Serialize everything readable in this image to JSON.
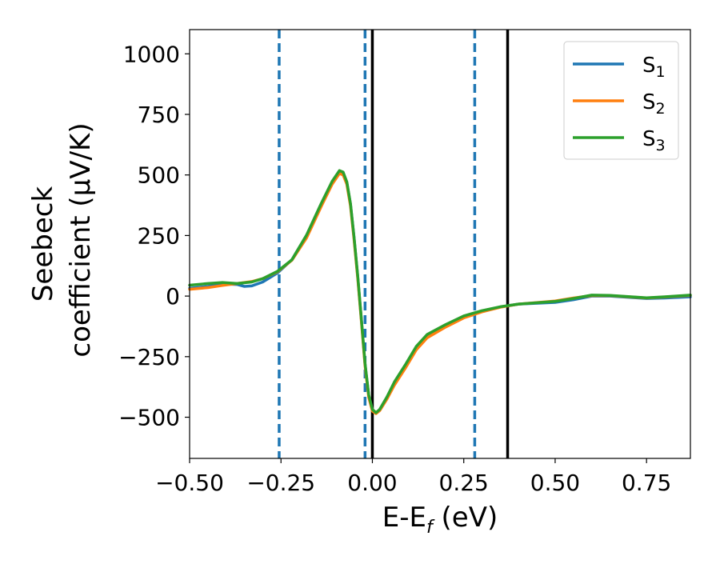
{
  "chart_data": {
    "type": "line",
    "title": "",
    "xlabel": "E-E",
    "xlabel_sub": "f",
    "xlabel_unit": " (eV)",
    "ylabel_line1": "Seebeck",
    "ylabel_line2": "coefficient  (μV/K)",
    "xlim": [
      -0.5,
      0.87
    ],
    "ylim": [
      -670,
      1100
    ],
    "xticks": [
      {
        "value": -0.5,
        "label": "−0.50"
      },
      {
        "value": -0.25,
        "label": "−0.25"
      },
      {
        "value": 0.0,
        "label": "0.00"
      },
      {
        "value": 0.25,
        "label": "0.25"
      },
      {
        "value": 0.5,
        "label": "0.50"
      },
      {
        "value": 0.75,
        "label": "0.75"
      }
    ],
    "yticks": [
      {
        "value": -500,
        "label": "−500"
      },
      {
        "value": -250,
        "label": "−250"
      },
      {
        "value": 0,
        "label": "0"
      },
      {
        "value": 250,
        "label": "250"
      },
      {
        "value": 500,
        "label": "500"
      },
      {
        "value": 750,
        "label": "750"
      },
      {
        "value": 1000,
        "label": "1000"
      }
    ],
    "grid": false,
    "legend_position": "top-right",
    "vlines": [
      {
        "x": -0.255,
        "style": "dashed",
        "color": "#1f77b4"
      },
      {
        "x": -0.02,
        "style": "dashed",
        "color": "#1f77b4"
      },
      {
        "x": 0.28,
        "style": "dashed",
        "color": "#1f77b4"
      },
      {
        "x": 0.0,
        "style": "solid",
        "color": "#000000"
      },
      {
        "x": 0.37,
        "style": "solid",
        "color": "#000000"
      }
    ],
    "series": [
      {
        "name": "S",
        "sub": "1",
        "color": "#1f77b4",
        "points": [
          [
            -0.5,
            32
          ],
          [
            -0.45,
            40
          ],
          [
            -0.41,
            50
          ],
          [
            -0.37,
            48
          ],
          [
            -0.35,
            40
          ],
          [
            -0.33,
            42
          ],
          [
            -0.3,
            58
          ],
          [
            -0.26,
            95
          ],
          [
            -0.22,
            150
          ],
          [
            -0.18,
            250
          ],
          [
            -0.14,
            380
          ],
          [
            -0.11,
            470
          ],
          [
            -0.09,
            515
          ],
          [
            -0.08,
            510
          ],
          [
            -0.07,
            470
          ],
          [
            -0.06,
            380
          ],
          [
            -0.05,
            240
          ],
          [
            -0.04,
            80
          ],
          [
            -0.03,
            -100
          ],
          [
            -0.02,
            -280
          ],
          [
            -0.01,
            -410
          ],
          [
            0.0,
            -470
          ],
          [
            0.01,
            -483
          ],
          [
            0.02,
            -470
          ],
          [
            0.04,
            -420
          ],
          [
            0.06,
            -360
          ],
          [
            0.09,
            -290
          ],
          [
            0.12,
            -210
          ],
          [
            0.15,
            -160
          ],
          [
            0.2,
            -120
          ],
          [
            0.25,
            -85
          ],
          [
            0.3,
            -62
          ],
          [
            0.35,
            -45
          ],
          [
            0.4,
            -33
          ],
          [
            0.5,
            -26
          ],
          [
            0.55,
            -15
          ],
          [
            0.6,
            0
          ],
          [
            0.65,
            0
          ],
          [
            0.7,
            -5
          ],
          [
            0.75,
            -10
          ],
          [
            0.8,
            -8
          ],
          [
            0.87,
            -3
          ]
        ]
      },
      {
        "name": "S",
        "sub": "2",
        "color": "#ff7f0e",
        "points": [
          [
            -0.5,
            28
          ],
          [
            -0.45,
            35
          ],
          [
            -0.41,
            44
          ],
          [
            -0.37,
            52
          ],
          [
            -0.33,
            60
          ],
          [
            -0.3,
            72
          ],
          [
            -0.26,
            100
          ],
          [
            -0.22,
            148
          ],
          [
            -0.18,
            240
          ],
          [
            -0.14,
            370
          ],
          [
            -0.11,
            462
          ],
          [
            -0.09,
            506
          ],
          [
            -0.08,
            500
          ],
          [
            -0.07,
            462
          ],
          [
            -0.06,
            372
          ],
          [
            -0.05,
            232
          ],
          [
            -0.04,
            72
          ],
          [
            -0.03,
            -108
          ],
          [
            -0.02,
            -288
          ],
          [
            -0.01,
            -418
          ],
          [
            0.0,
            -475
          ],
          [
            0.01,
            -485
          ],
          [
            0.02,
            -473
          ],
          [
            0.04,
            -425
          ],
          [
            0.06,
            -368
          ],
          [
            0.09,
            -298
          ],
          [
            0.12,
            -222
          ],
          [
            0.15,
            -172
          ],
          [
            0.2,
            -128
          ],
          [
            0.25,
            -90
          ],
          [
            0.3,
            -65
          ],
          [
            0.35,
            -46
          ],
          [
            0.4,
            -33
          ],
          [
            0.5,
            -20
          ],
          [
            0.55,
            -8
          ],
          [
            0.6,
            2
          ],
          [
            0.65,
            2
          ],
          [
            0.7,
            -3
          ],
          [
            0.75,
            -8
          ],
          [
            0.8,
            -4
          ],
          [
            0.87,
            3
          ]
        ]
      },
      {
        "name": "S",
        "sub": "3",
        "color": "#2ca02c",
        "points": [
          [
            -0.5,
            45
          ],
          [
            -0.45,
            52
          ],
          [
            -0.41,
            56
          ],
          [
            -0.37,
            52
          ],
          [
            -0.33,
            58
          ],
          [
            -0.3,
            72
          ],
          [
            -0.26,
            102
          ],
          [
            -0.22,
            150
          ],
          [
            -0.18,
            252
          ],
          [
            -0.14,
            382
          ],
          [
            -0.11,
            474
          ],
          [
            -0.09,
            518
          ],
          [
            -0.08,
            512
          ],
          [
            -0.07,
            472
          ],
          [
            -0.06,
            382
          ],
          [
            -0.05,
            242
          ],
          [
            -0.04,
            82
          ],
          [
            -0.03,
            -98
          ],
          [
            -0.02,
            -278
          ],
          [
            -0.01,
            -408
          ],
          [
            0.0,
            -468
          ],
          [
            0.01,
            -481
          ],
          [
            0.02,
            -468
          ],
          [
            0.04,
            -416
          ],
          [
            0.06,
            -355
          ],
          [
            0.09,
            -284
          ],
          [
            0.12,
            -208
          ],
          [
            0.15,
            -158
          ],
          [
            0.2,
            -118
          ],
          [
            0.25,
            -82
          ],
          [
            0.3,
            -60
          ],
          [
            0.35,
            -44
          ],
          [
            0.4,
            -33
          ],
          [
            0.5,
            -22
          ],
          [
            0.55,
            -10
          ],
          [
            0.6,
            4
          ],
          [
            0.65,
            3
          ],
          [
            0.7,
            -2
          ],
          [
            0.75,
            -7
          ],
          [
            0.8,
            -3
          ],
          [
            0.87,
            4
          ]
        ]
      }
    ]
  }
}
